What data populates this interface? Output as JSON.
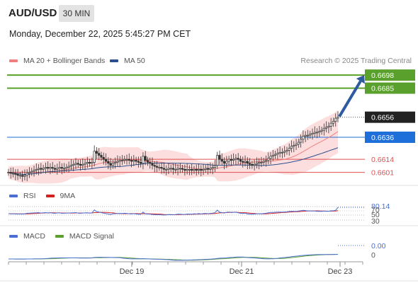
{
  "header": {
    "symbol": "AUD/USD",
    "timeframe": "30 MIN",
    "datetime": "Monday, December 22, 2025 5:45:27 PM CET"
  },
  "legend": {
    "ma20": {
      "label": "MA 20 + Bollinger Bands",
      "color": "#f08080"
    },
    "ma50": {
      "label": "MA 50",
      "color": "#2d4f8e"
    },
    "credit": "Research © 2025 Trading Central"
  },
  "chart_data": [
    {
      "type": "candlestick",
      "title": "",
      "ylim": [
        0.6588,
        0.6708
      ],
      "current_price": 0.6656,
      "levels": [
        {
          "value": 0.6698,
          "label": "0.6698",
          "kind": "resistance",
          "color": "#5aa02c"
        },
        {
          "value": 0.6685,
          "label": "0.6685",
          "kind": "resistance",
          "color": "#5aa02c"
        },
        {
          "value": 0.6636,
          "label": "0.6636",
          "kind": "pivot",
          "color": "#1e6fd9"
        },
        {
          "value": 0.6614,
          "label": "0.6614",
          "kind": "support",
          "color": "#e05050"
        },
        {
          "value": 0.6601,
          "label": "0.6601",
          "kind": "support",
          "color": "#e05050"
        }
      ],
      "x_ticks": [
        "Dec 19",
        "Dec 21",
        "Dec 23"
      ],
      "closes": [
        0.6601,
        0.66,
        0.66,
        0.6599,
        0.6598,
        0.6598,
        0.6597,
        0.6598,
        0.66,
        0.6601,
        0.6602,
        0.6603,
        0.6604,
        0.6605,
        0.6604,
        0.6605,
        0.6606,
        0.6605,
        0.6606,
        0.6605,
        0.6604,
        0.6605,
        0.6606,
        0.6605,
        0.6605,
        0.6606,
        0.6607,
        0.6608,
        0.6609,
        0.661,
        0.6609,
        0.6608,
        0.6609,
        0.661,
        0.6611,
        0.661,
        0.6611,
        0.6622,
        0.662,
        0.6618,
        0.6616,
        0.6614,
        0.6612,
        0.661,
        0.6608,
        0.661,
        0.6611,
        0.6612,
        0.6613,
        0.6613,
        0.6614,
        0.6614,
        0.6613,
        0.6612,
        0.6613,
        0.6612,
        0.6611,
        0.661,
        0.6617,
        0.6613,
        0.6611,
        0.661,
        0.6608,
        0.6607,
        0.6606,
        0.6606,
        0.6605,
        0.6604,
        0.6604,
        0.6605,
        0.6605,
        0.6604,
        0.6604,
        0.6605,
        0.6605,
        0.6604,
        0.6603,
        0.6604,
        0.6604,
        0.6603,
        0.6604,
        0.6603,
        0.6604,
        0.6603,
        0.6604,
        0.6605,
        0.6604,
        0.6605,
        0.6606,
        0.6608,
        0.6618,
        0.6614,
        0.6612,
        0.661,
        0.6612,
        0.6614,
        0.6613,
        0.6614,
        0.6615,
        0.6614,
        0.6612,
        0.6611,
        0.6612,
        0.661,
        0.6609,
        0.6608,
        0.6609,
        0.661,
        0.6611,
        0.6611,
        0.6612,
        0.6613,
        0.6615,
        0.6617,
        0.6618,
        0.6619,
        0.662,
        0.6621,
        0.6621,
        0.6622,
        0.6623,
        0.6625,
        0.6627,
        0.6628,
        0.6629,
        0.6631,
        0.6634,
        0.6637,
        0.6638,
        0.6638,
        0.6639,
        0.664,
        0.6641,
        0.6641,
        0.6642,
        0.6643,
        0.6645,
        0.6646,
        0.6647,
        0.665,
        0.6652,
        0.6655,
        0.6656
      ]
    },
    {
      "type": "line",
      "name": "RSI",
      "legend": [
        {
          "label": "RSI",
          "color": "#4a6fd4"
        },
        {
          "label": "9MA",
          "color": "#d62020"
        }
      ],
      "ylim": [
        20,
        90
      ],
      "levels": [
        "70",
        "50",
        "30"
      ],
      "current_label": "80.14",
      "current": 80.14
    },
    {
      "type": "line",
      "name": "MACD",
      "legend": [
        {
          "label": "MACD",
          "color": "#4a6fd4"
        },
        {
          "label": "MACD Signal",
          "color": "#5aa02c"
        }
      ],
      "current_label": "0.00",
      "zero_label": "0"
    }
  ]
}
